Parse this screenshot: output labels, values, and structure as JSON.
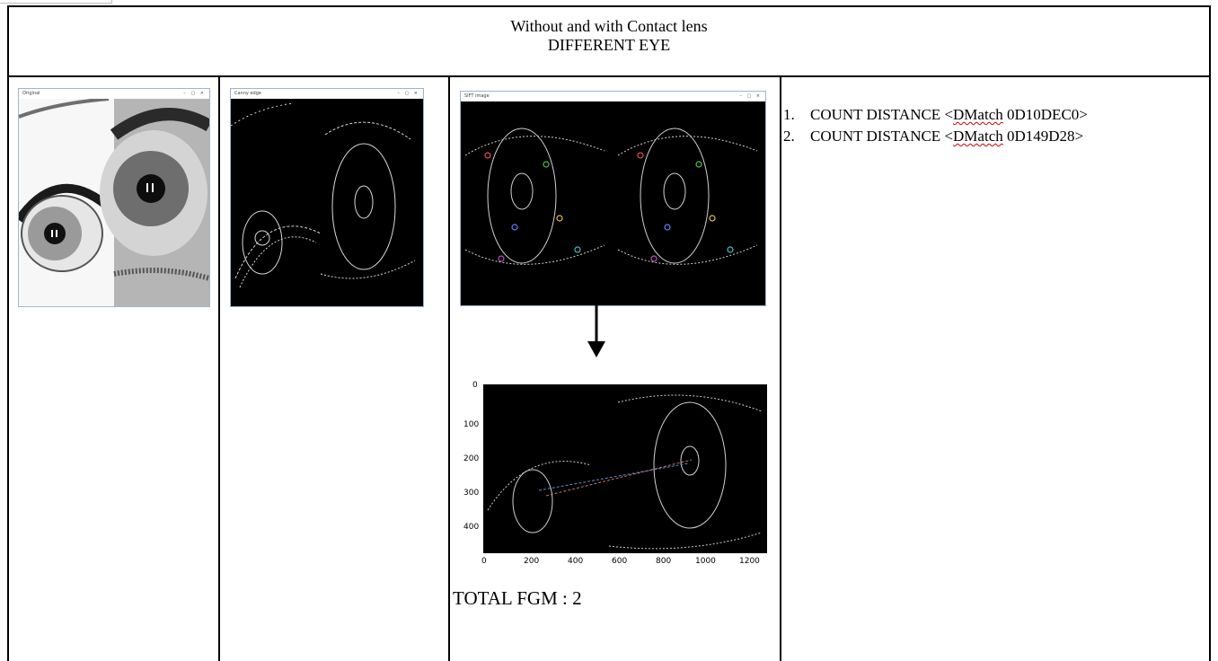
{
  "header": {
    "line1": "Without and with Contact lens",
    "line2": "DIFFERENT EYE"
  },
  "windows": {
    "original": {
      "title": "Original"
    },
    "canny": {
      "title": "Canny edge"
    },
    "sift": {
      "title": "SIFT image"
    }
  },
  "plot": {
    "y_ticks": [
      "0",
      "100",
      "200",
      "300",
      "400"
    ],
    "x_ticks": [
      "0",
      "200",
      "400",
      "600",
      "800",
      "1000",
      "1200"
    ]
  },
  "total_label": "TOTAL FGM : 2",
  "matches": [
    {
      "num": "1.",
      "prefix": "COUNT DISTANCE <",
      "word": "DMatch",
      "suffix": " 0D10DEC0>"
    },
    {
      "num": "2.",
      "prefix": "COUNT DISTANCE <",
      "word": "DMatch",
      "suffix": " 0D149D28>"
    }
  ],
  "colors": {
    "border": "#000000",
    "window_frame": "#9fb4cc",
    "match_line": "#5b8fd6"
  }
}
